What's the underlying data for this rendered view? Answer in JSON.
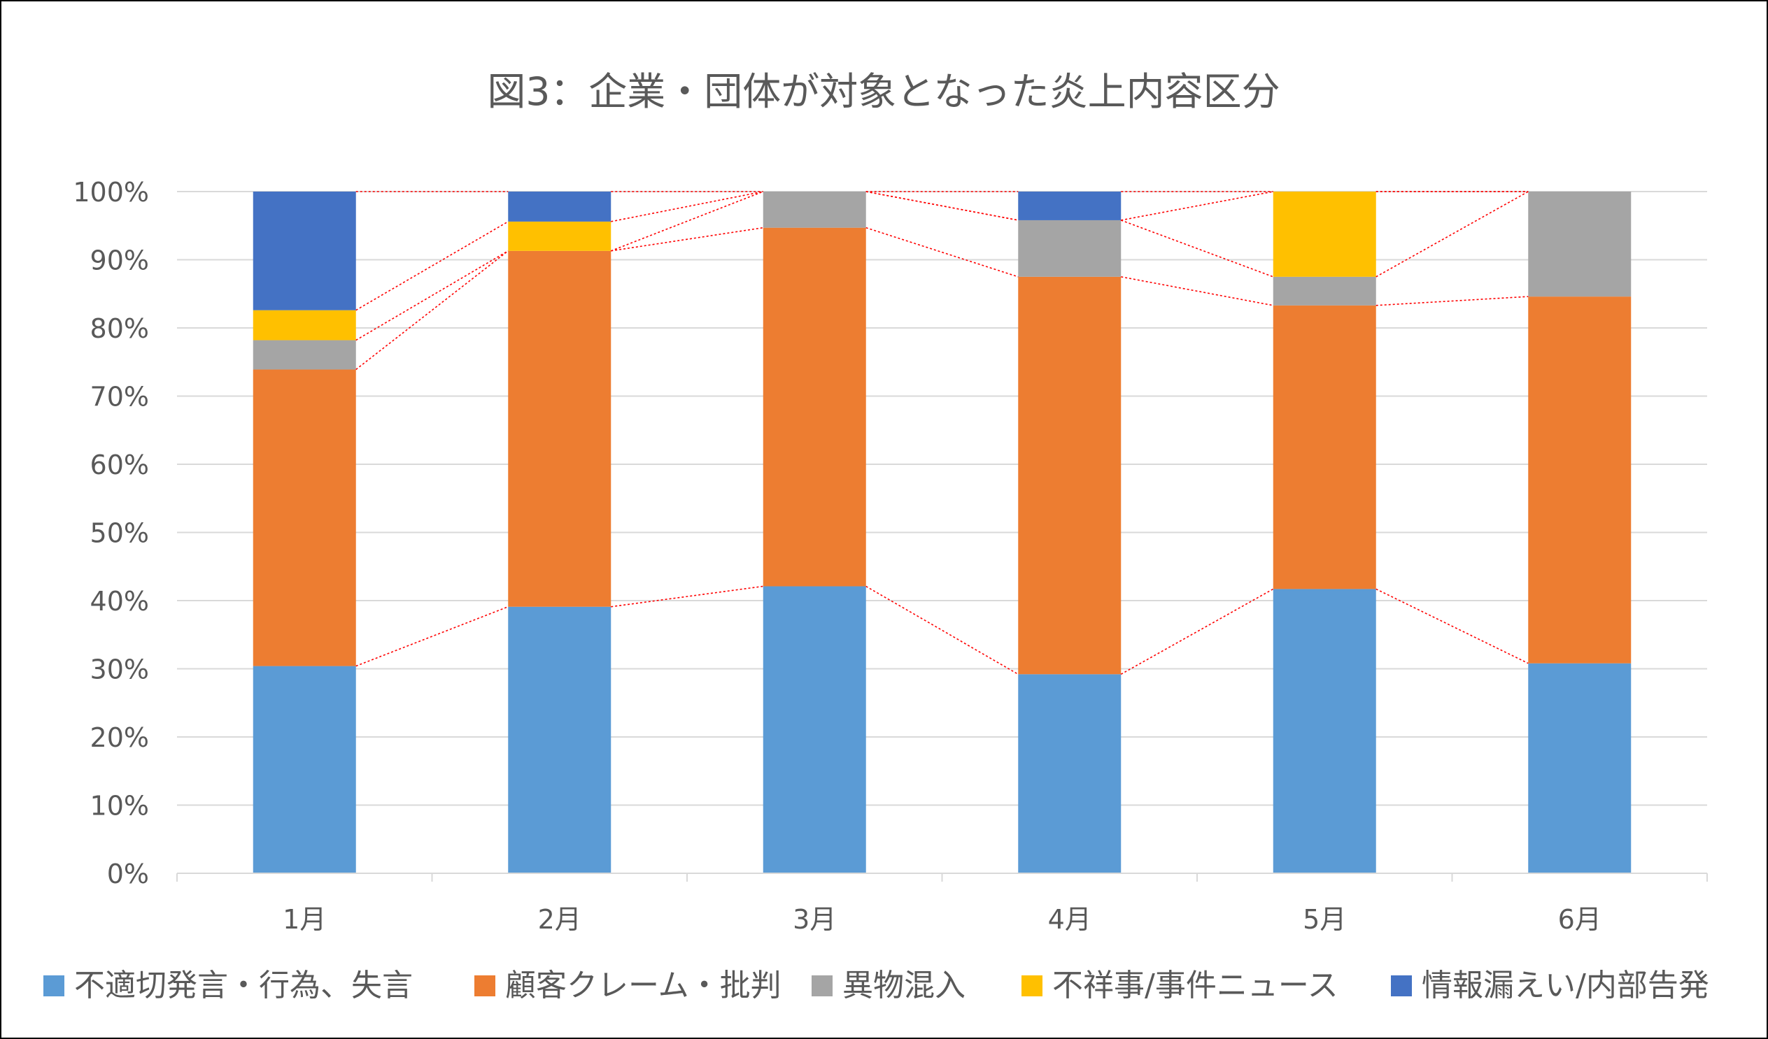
{
  "chart_data": {
    "type": "bar",
    "stacked": true,
    "percent": true,
    "title": "図3：企業・団体が対象となった炎上内容区分",
    "categories": [
      "1月",
      "2月",
      "3月",
      "4月",
      "5月",
      "6月"
    ],
    "series": [
      {
        "name": "不適切発言・行為、失言",
        "color": "#5B9BD5",
        "values": [
          30.4,
          39.1,
          42.1,
          29.2,
          41.7,
          30.8
        ]
      },
      {
        "name": "顧客クレーム・批判",
        "color": "#ED7D31",
        "values": [
          43.5,
          52.2,
          52.6,
          58.3,
          41.6,
          53.8
        ]
      },
      {
        "name": "異物混入",
        "color": "#A5A5A5",
        "values": [
          4.3,
          0,
          5.3,
          8.3,
          4.2,
          15.4
        ]
      },
      {
        "name": "不祥事/事件ニュース",
        "color": "#FFC000",
        "values": [
          4.4,
          4.3,
          0,
          0,
          12.5,
          0
        ]
      },
      {
        "name": "情報漏えい/内部告発",
        "color": "#4472C4",
        "values": [
          17.4,
          4.4,
          0,
          4.2,
          0,
          0
        ]
      }
    ],
    "ylim": [
      0,
      100
    ],
    "yticks": [
      "0%",
      "10%",
      "20%",
      "30%",
      "40%",
      "50%",
      "60%",
      "70%",
      "80%",
      "90%",
      "100%"
    ],
    "gridlines": true,
    "series_lines": true,
    "series_line_color": "#FF0000",
    "legend_position": "bottom",
    "xlabel": "",
    "ylabel": ""
  }
}
